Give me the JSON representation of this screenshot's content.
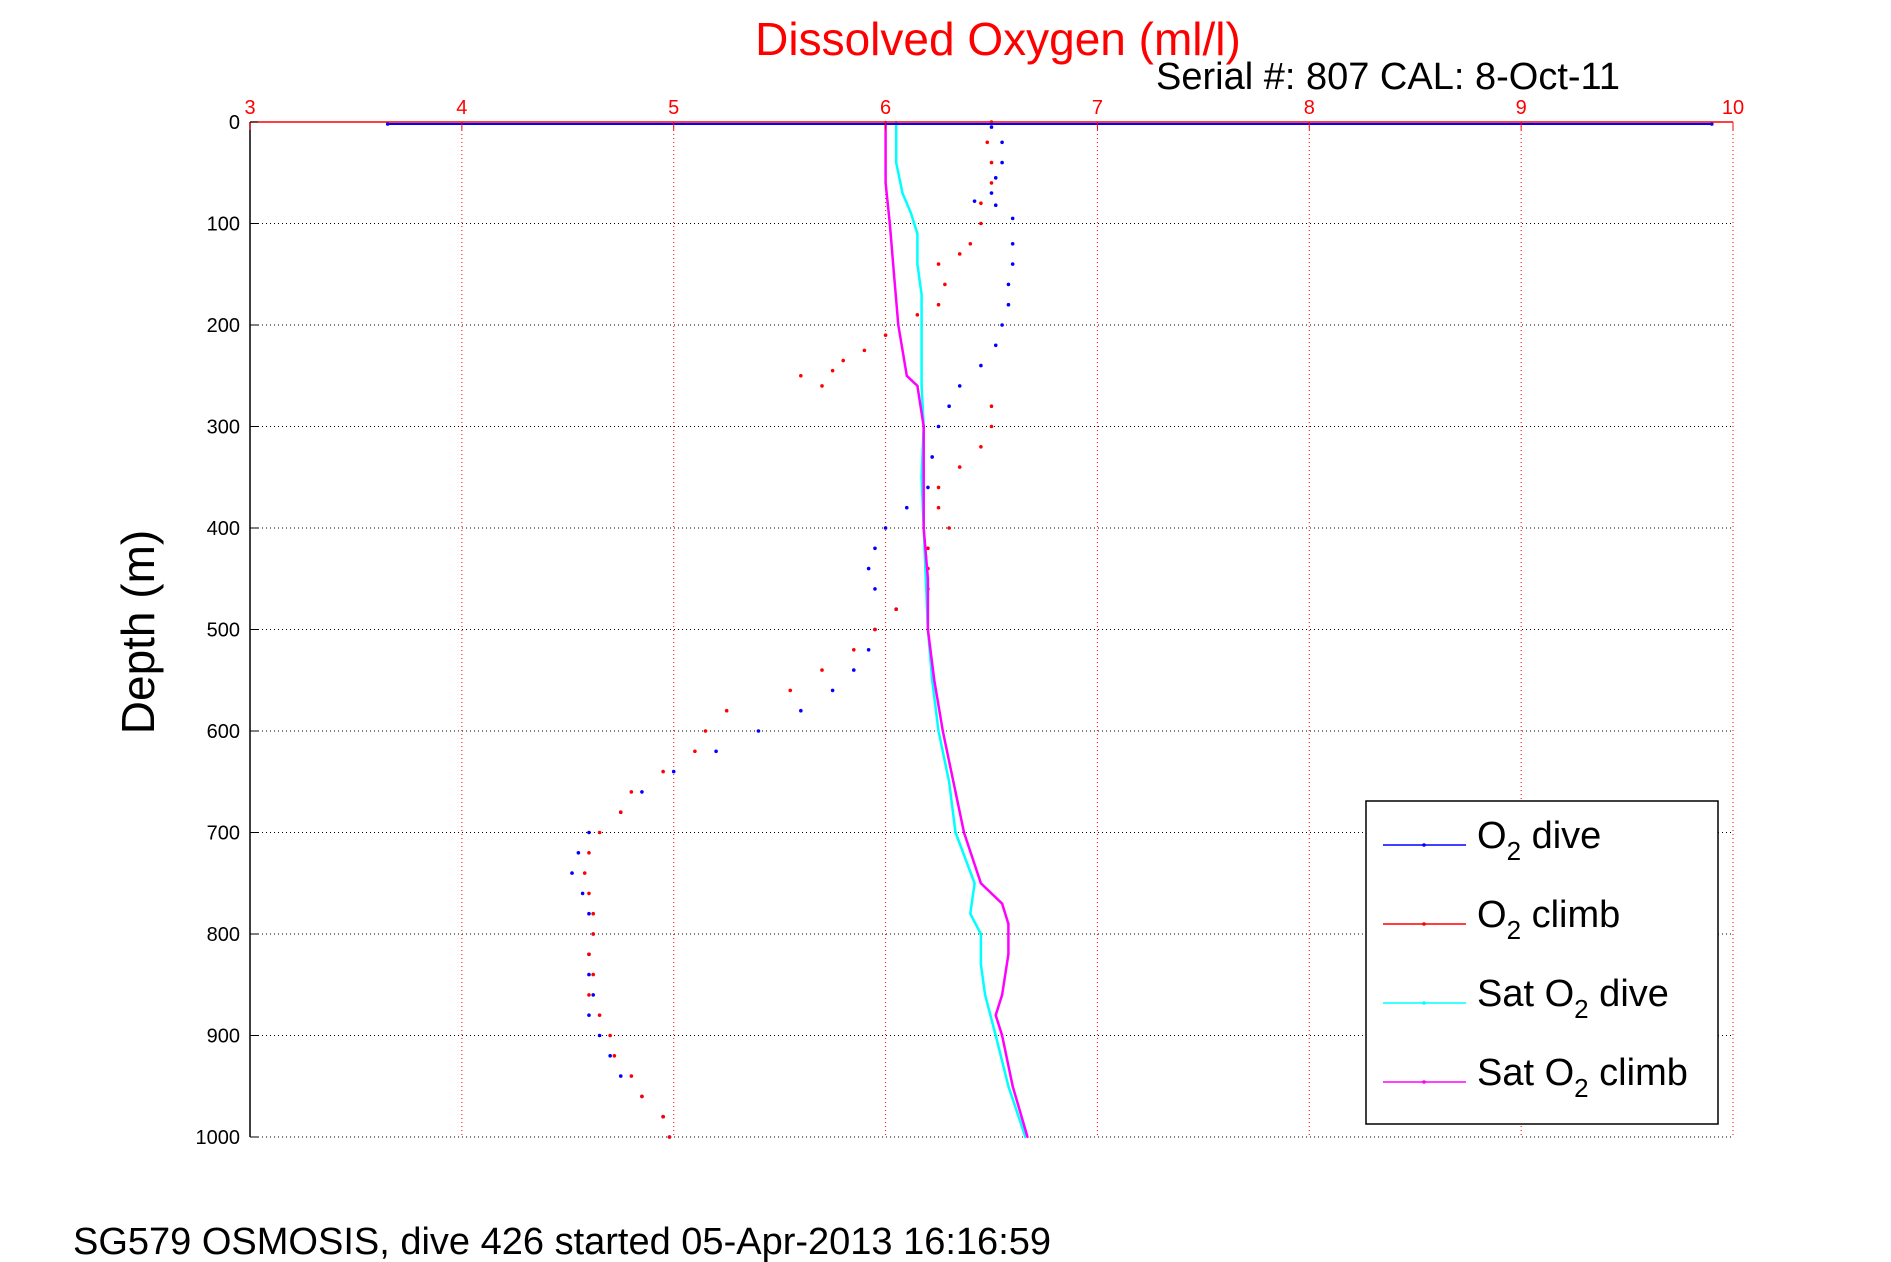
{
  "chart_data": {
    "type": "scatter",
    "title": "Dissolved Oxygen (ml/l)",
    "subtitle": "Serial #: 807  CAL: 8-Oct-11",
    "xlabel": "",
    "ylabel": "Depth (m)",
    "xlim": [
      3,
      10
    ],
    "ylim": [
      0,
      1000
    ],
    "y_reversed": true,
    "x_axis_position": "top",
    "grid": true,
    "xticks": [
      3,
      4,
      5,
      6,
      7,
      8,
      9,
      10
    ],
    "yticks": [
      0,
      100,
      200,
      300,
      400,
      500,
      600,
      700,
      800,
      900,
      1000
    ],
    "legend_position": "bottom-right",
    "series": [
      {
        "name": "O2 dive",
        "legend": {
          "pre": "O",
          "sub": "2",
          "post": " dive"
        },
        "color": "#0000ff",
        "style": "dots",
        "points": [
          [
            3.65,
            2
          ],
          [
            9.9,
            2
          ],
          [
            6.5,
            5
          ],
          [
            6.55,
            20
          ],
          [
            6.55,
            40
          ],
          [
            6.52,
            55
          ],
          [
            6.5,
            70
          ],
          [
            6.42,
            78
          ],
          [
            6.52,
            82
          ],
          [
            6.6,
            95
          ],
          [
            6.6,
            120
          ],
          [
            6.6,
            140
          ],
          [
            6.58,
            160
          ],
          [
            6.58,
            180
          ],
          [
            6.55,
            200
          ],
          [
            6.52,
            220
          ],
          [
            6.45,
            240
          ],
          [
            6.35,
            260
          ],
          [
            6.3,
            280
          ],
          [
            6.25,
            300
          ],
          [
            6.22,
            330
          ],
          [
            6.2,
            360
          ],
          [
            6.1,
            380
          ],
          [
            6.0,
            400
          ],
          [
            5.95,
            420
          ],
          [
            5.92,
            440
          ],
          [
            5.95,
            460
          ],
          [
            6.05,
            480
          ],
          [
            5.95,
            500
          ],
          [
            5.92,
            520
          ],
          [
            5.85,
            540
          ],
          [
            5.75,
            560
          ],
          [
            5.6,
            580
          ],
          [
            5.4,
            600
          ],
          [
            5.2,
            620
          ],
          [
            5.0,
            640
          ],
          [
            4.85,
            660
          ],
          [
            4.75,
            680
          ],
          [
            4.6,
            700
          ],
          [
            4.55,
            720
          ],
          [
            4.52,
            740
          ],
          [
            4.57,
            760
          ],
          [
            4.6,
            780
          ],
          [
            4.62,
            800
          ],
          [
            4.6,
            820
          ],
          [
            4.6,
            840
          ],
          [
            4.62,
            860
          ],
          [
            4.6,
            880
          ],
          [
            4.65,
            900
          ],
          [
            4.7,
            920
          ],
          [
            4.75,
            940
          ],
          [
            4.85,
            960
          ],
          [
            4.95,
            980
          ],
          [
            4.98,
            1000
          ]
        ]
      },
      {
        "name": "O2 climb",
        "legend": {
          "pre": "O",
          "sub": "2",
          "post": " climb"
        },
        "color": "#ff0000",
        "style": "dots",
        "points": [
          [
            6.5,
            0
          ],
          [
            6.48,
            20
          ],
          [
            6.5,
            40
          ],
          [
            6.5,
            60
          ],
          [
            6.45,
            80
          ],
          [
            6.45,
            100
          ],
          [
            6.4,
            120
          ],
          [
            6.35,
            130
          ],
          [
            6.25,
            140
          ],
          [
            6.28,
            160
          ],
          [
            6.25,
            180
          ],
          [
            6.15,
            190
          ],
          [
            6.0,
            210
          ],
          [
            5.9,
            225
          ],
          [
            5.8,
            235
          ],
          [
            5.75,
            245
          ],
          [
            5.6,
            250
          ],
          [
            5.7,
            260
          ],
          [
            6.5,
            280
          ],
          [
            6.5,
            300
          ],
          [
            6.45,
            320
          ],
          [
            6.35,
            340
          ],
          [
            6.25,
            360
          ],
          [
            6.25,
            380
          ],
          [
            6.3,
            400
          ],
          [
            6.2,
            420
          ],
          [
            6.2,
            440
          ],
          [
            6.2,
            460
          ],
          [
            6.05,
            480
          ],
          [
            5.95,
            500
          ],
          [
            5.85,
            520
          ],
          [
            5.7,
            540
          ],
          [
            5.55,
            560
          ],
          [
            5.25,
            580
          ],
          [
            5.15,
            600
          ],
          [
            5.1,
            620
          ],
          [
            4.95,
            640
          ],
          [
            4.8,
            660
          ],
          [
            4.75,
            680
          ],
          [
            4.65,
            700
          ],
          [
            4.6,
            720
          ],
          [
            4.58,
            740
          ],
          [
            4.6,
            760
          ],
          [
            4.62,
            780
          ],
          [
            4.62,
            800
          ],
          [
            4.6,
            820
          ],
          [
            4.62,
            840
          ],
          [
            4.6,
            860
          ],
          [
            4.65,
            880
          ],
          [
            4.7,
            900
          ],
          [
            4.72,
            920
          ],
          [
            4.8,
            940
          ],
          [
            4.85,
            960
          ],
          [
            4.95,
            980
          ],
          [
            4.98,
            1000
          ]
        ]
      },
      {
        "name": "Sat O2 dive",
        "legend": {
          "pre": "Sat O",
          "sub": "2",
          "post": " dive"
        },
        "color": "#00ffff",
        "style": "line",
        "points": [
          [
            6.05,
            0
          ],
          [
            6.05,
            40
          ],
          [
            6.08,
            70
          ],
          [
            6.12,
            90
          ],
          [
            6.15,
            110
          ],
          [
            6.15,
            140
          ],
          [
            6.17,
            170
          ],
          [
            6.17,
            200
          ],
          [
            6.17,
            230
          ],
          [
            6.17,
            260
          ],
          [
            6.18,
            300
          ],
          [
            6.17,
            350
          ],
          [
            6.18,
            400
          ],
          [
            6.19,
            450
          ],
          [
            6.2,
            500
          ],
          [
            6.22,
            550
          ],
          [
            6.25,
            600
          ],
          [
            6.3,
            650
          ],
          [
            6.33,
            700
          ],
          [
            6.42,
            750
          ],
          [
            6.4,
            780
          ],
          [
            6.45,
            800
          ],
          [
            6.45,
            830
          ],
          [
            6.47,
            860
          ],
          [
            6.52,
            900
          ],
          [
            6.58,
            950
          ],
          [
            6.66,
            1000
          ]
        ]
      },
      {
        "name": "Sat O2 climb",
        "legend": {
          "pre": "Sat O",
          "sub": "2",
          "post": " climb"
        },
        "color": "#ff00ff",
        "style": "line",
        "points": [
          [
            6.0,
            0
          ],
          [
            6.0,
            60
          ],
          [
            6.02,
            100
          ],
          [
            6.04,
            150
          ],
          [
            6.06,
            200
          ],
          [
            6.1,
            250
          ],
          [
            6.15,
            260
          ],
          [
            6.18,
            300
          ],
          [
            6.18,
            350
          ],
          [
            6.18,
            400
          ],
          [
            6.2,
            450
          ],
          [
            6.2,
            500
          ],
          [
            6.23,
            550
          ],
          [
            6.27,
            600
          ],
          [
            6.32,
            650
          ],
          [
            6.37,
            700
          ],
          [
            6.45,
            750
          ],
          [
            6.55,
            770
          ],
          [
            6.58,
            790
          ],
          [
            6.58,
            820
          ],
          [
            6.55,
            860
          ],
          [
            6.52,
            880
          ],
          [
            6.55,
            900
          ],
          [
            6.6,
            950
          ],
          [
            6.67,
            1000
          ]
        ]
      }
    ]
  },
  "footer": "SG579 OSMOSIS, dive 426 started 05-Apr-2013 16:16:59"
}
